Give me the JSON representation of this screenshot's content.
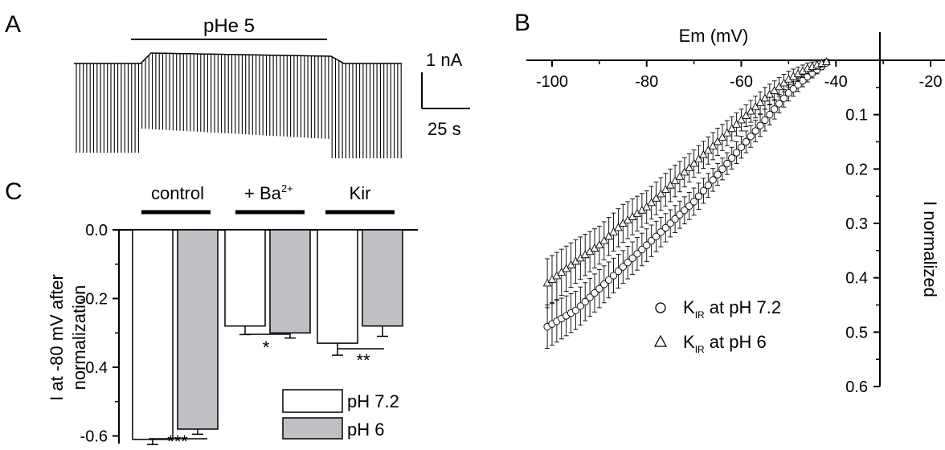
{
  "colors": {
    "ink": "#000000",
    "bar_white": "#ffffff",
    "bar_grey": "#c0c0c4"
  },
  "panelA": {
    "letter": "A",
    "label": "pHe 5",
    "scale_current": "1 nA",
    "scale_time": "25 s"
  },
  "panelC": {
    "letter": "C",
    "groups": [
      "control",
      "+ Ba",
      "Kir"
    ],
    "ba_superscript": "2+",
    "ylabel_line1": "I at -80 mV after",
    "ylabel_line2": "normalization",
    "yticks": [
      "0.0",
      "-0.2",
      "-0.4",
      "-0.6"
    ],
    "significance": [
      "***",
      "*",
      "**"
    ],
    "legend": [
      "pH 7.2",
      "pH 6"
    ]
  },
  "panelB": {
    "letter": "B",
    "xlabel": "Em (mV)",
    "ylabel": "I normalized",
    "xticks": [
      "-100",
      "-80",
      "-60",
      "-40",
      "-20"
    ],
    "yticks": [
      "0.1",
      "0.2",
      "0.3",
      "0.4",
      "0.5",
      "0.6"
    ],
    "legend": [
      {
        "marker": "circle-icon",
        "sym": "K",
        "sub": "IR",
        "text": " at pH 7.2"
      },
      {
        "marker": "triangle-icon",
        "sym": "K",
        "sub": "IR",
        "text": " at pH 6"
      }
    ]
  },
  "chart_data": [
    {
      "type": "bar",
      "categories": [
        "control",
        "+ Ba2+",
        "Kir"
      ],
      "series": [
        {
          "name": "pH 7.2",
          "values": [
            -0.61,
            -0.28,
            -0.33
          ],
          "errors": [
            0.015,
            0.025,
            0.035
          ]
        },
        {
          "name": "pH 6",
          "values": [
            -0.58,
            -0.3,
            -0.28
          ],
          "errors": [
            0.015,
            0.015,
            0.03
          ]
        }
      ],
      "ylabel": "I at -80 mV after normalization",
      "ylim": [
        -0.62,
        0.0
      ],
      "significance": [
        "***",
        "*",
        "**"
      ],
      "legend_position": "bottom-right"
    },
    {
      "type": "scatter",
      "xlabel": "Em (mV)",
      "ylabel": "I normalized",
      "xlim": [
        -102,
        -18
      ],
      "ylim": [
        0.0,
        0.6
      ],
      "series": [
        {
          "name": "KIR at pH 7.2",
          "marker": "circle",
          "x": [
            -101,
            -95,
            -90,
            -85,
            -80,
            -75,
            -70,
            -65,
            -60,
            -55,
            -50,
            -46,
            -42
          ],
          "y": [
            0.49,
            0.46,
            0.42,
            0.38,
            0.34,
            0.3,
            0.26,
            0.21,
            0.16,
            0.11,
            0.06,
            0.03,
            0.005
          ],
          "error": [
            0.04,
            0.035,
            0.035,
            0.03,
            0.03,
            0.025,
            0.025,
            0.02,
            0.02,
            0.02,
            0.015,
            0.01,
            0.005
          ]
        },
        {
          "name": "KIR at pH 6",
          "marker": "triangle",
          "x": [
            -101,
            -95,
            -90,
            -85,
            -80,
            -75,
            -70,
            -65,
            -60,
            -55,
            -50,
            -46,
            -42
          ],
          "y": [
            0.41,
            0.37,
            0.34,
            0.3,
            0.27,
            0.23,
            0.19,
            0.15,
            0.11,
            0.07,
            0.035,
            0.015,
            0.003
          ],
          "error": [
            0.045,
            0.04,
            0.035,
            0.035,
            0.03,
            0.03,
            0.025,
            0.025,
            0.02,
            0.02,
            0.015,
            0.01,
            0.005
          ]
        }
      ]
    }
  ]
}
